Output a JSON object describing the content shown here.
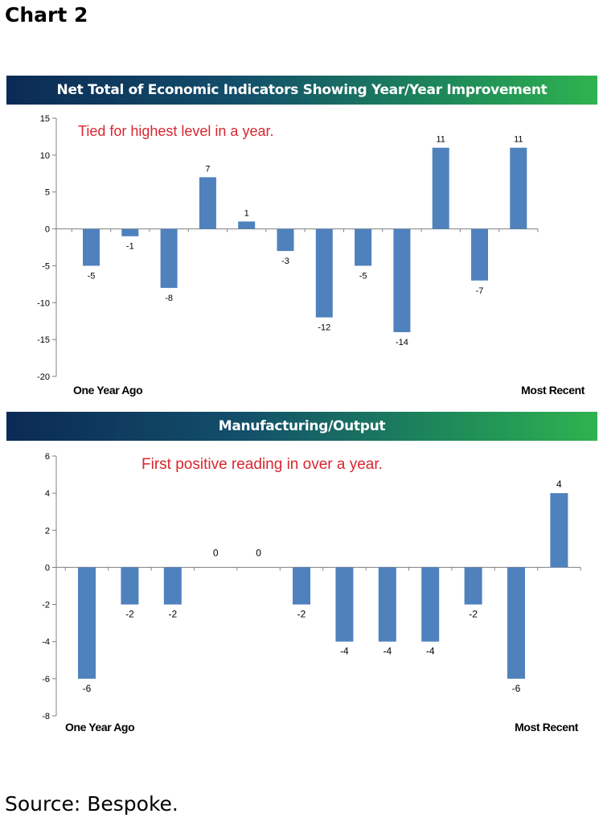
{
  "heading": "Chart 2",
  "source": "Source: Bespoke.",
  "chart_data": [
    {
      "type": "bar",
      "title": "Net Total of Economic Indicators Showing Year/Year Improvement",
      "annotation": "Tied for highest level in a year.",
      "annotation_color": "#d9262f",
      "bar_color": "#4f81bd",
      "x_start_label": "One Year Ago",
      "x_end_label": "Most Recent",
      "ylim": [
        -20,
        15
      ],
      "yticks": [
        15,
        10,
        5,
        0,
        -5,
        -10,
        -15,
        -20
      ],
      "values": [
        -5,
        -1,
        -8,
        7,
        1,
        -3,
        -12,
        -5,
        -14,
        11,
        -7,
        11
      ],
      "grid": false
    },
    {
      "type": "bar",
      "title": "Manufacturing/Output",
      "annotation": "First positive reading in over a year.",
      "annotation_color": "#d9262f",
      "bar_color": "#4f81bd",
      "x_start_label": "One Year Ago",
      "x_end_label": "Most Recent",
      "ylim": [
        -8,
        6
      ],
      "yticks": [
        6,
        4,
        2,
        0,
        -2,
        -4,
        -6,
        -8
      ],
      "values": [
        -6,
        -2,
        -2,
        0,
        0,
        -2,
        -4,
        -4,
        -4,
        -2,
        -6,
        4
      ],
      "grid": false
    }
  ]
}
